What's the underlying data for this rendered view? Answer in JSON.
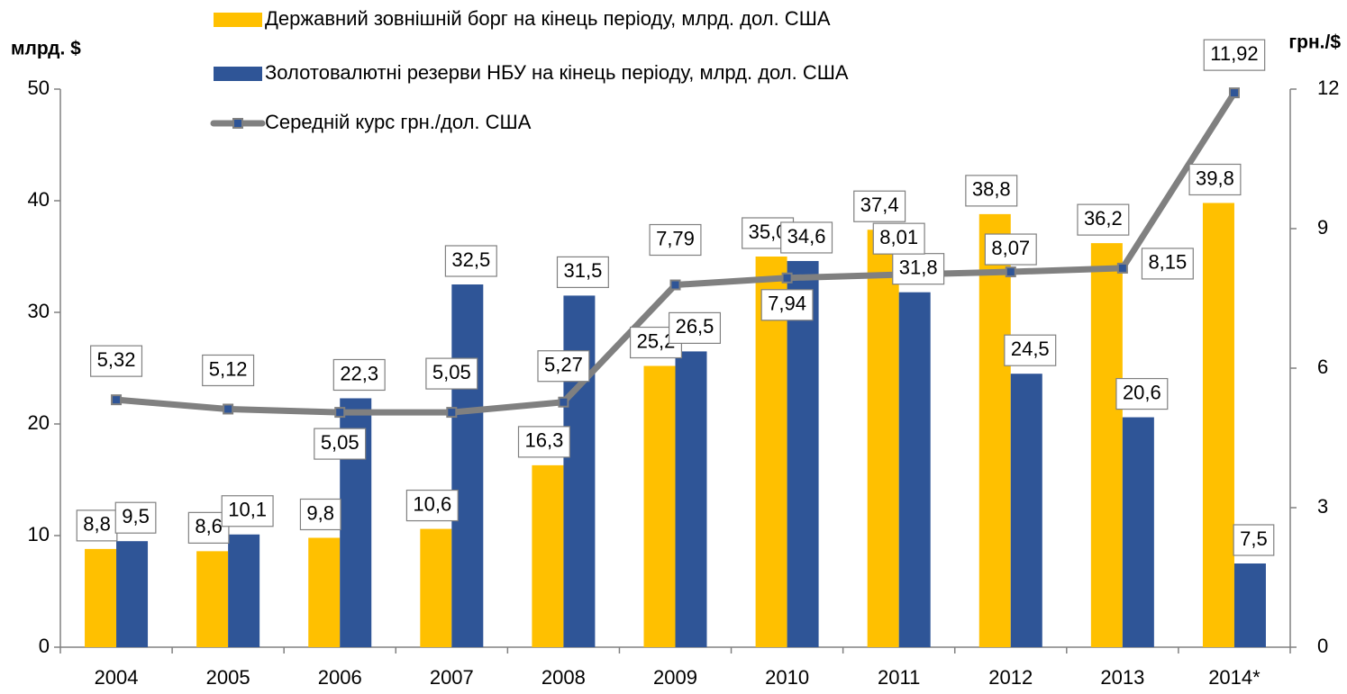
{
  "chart_data": {
    "type": "bar",
    "categories": [
      "2004",
      "2005",
      "2006",
      "2007",
      "2008",
      "2009",
      "2010",
      "2011",
      "2012",
      "2013",
      "2014*"
    ],
    "series": [
      {
        "name": "Державний зовнішній борг на кінець періоду, млрд. дол. США",
        "color": "#FFC000",
        "values": [
          8.8,
          8.6,
          9.8,
          10.6,
          16.3,
          25.2,
          35.0,
          37.4,
          38.8,
          36.2,
          39.8
        ],
        "value_labels": [
          "8,8",
          "8,6",
          "9,8",
          "10,6",
          "16,3",
          "25,2",
          "35,0",
          "37,4",
          "38,8",
          "36,2",
          "39,8"
        ]
      },
      {
        "name": "Золотовалютні резерви НБУ на кінець періоду, млрд. дол. США",
        "color": "#2F5597",
        "values": [
          9.5,
          10.1,
          22.3,
          32.5,
          31.5,
          26.5,
          34.6,
          31.8,
          24.5,
          20.6,
          7.5
        ],
        "value_labels": [
          "9,5",
          "10,1",
          "22,3",
          "32,5",
          "31,5",
          "26,5",
          "34,6",
          "31,8",
          "24,5",
          "20,6",
          "7,5"
        ]
      },
      {
        "name": "Середній курс грн./дол. США",
        "type": "line",
        "axis": "y2",
        "color": "#808080",
        "marker_color": "#2F5597",
        "values": [
          5.32,
          5.12,
          5.05,
          5.05,
          5.27,
          7.79,
          7.94,
          8.01,
          8.07,
          8.15,
          11.92
        ],
        "value_labels": [
          "5,32",
          "5,12",
          "5,05",
          "5,05",
          "5,27",
          "7,79",
          "7,94",
          "8,01",
          "8,07",
          "8,15",
          "11,92"
        ]
      }
    ],
    "y_label": "млрд. $",
    "y2_label": "грн./$",
    "ylim": [
      0,
      50
    ],
    "yticks": [
      0,
      10,
      20,
      30,
      40,
      50
    ],
    "y2lim": [
      0,
      12
    ],
    "y2ticks": [
      0,
      3,
      6,
      9,
      12
    ],
    "legend": "top"
  }
}
